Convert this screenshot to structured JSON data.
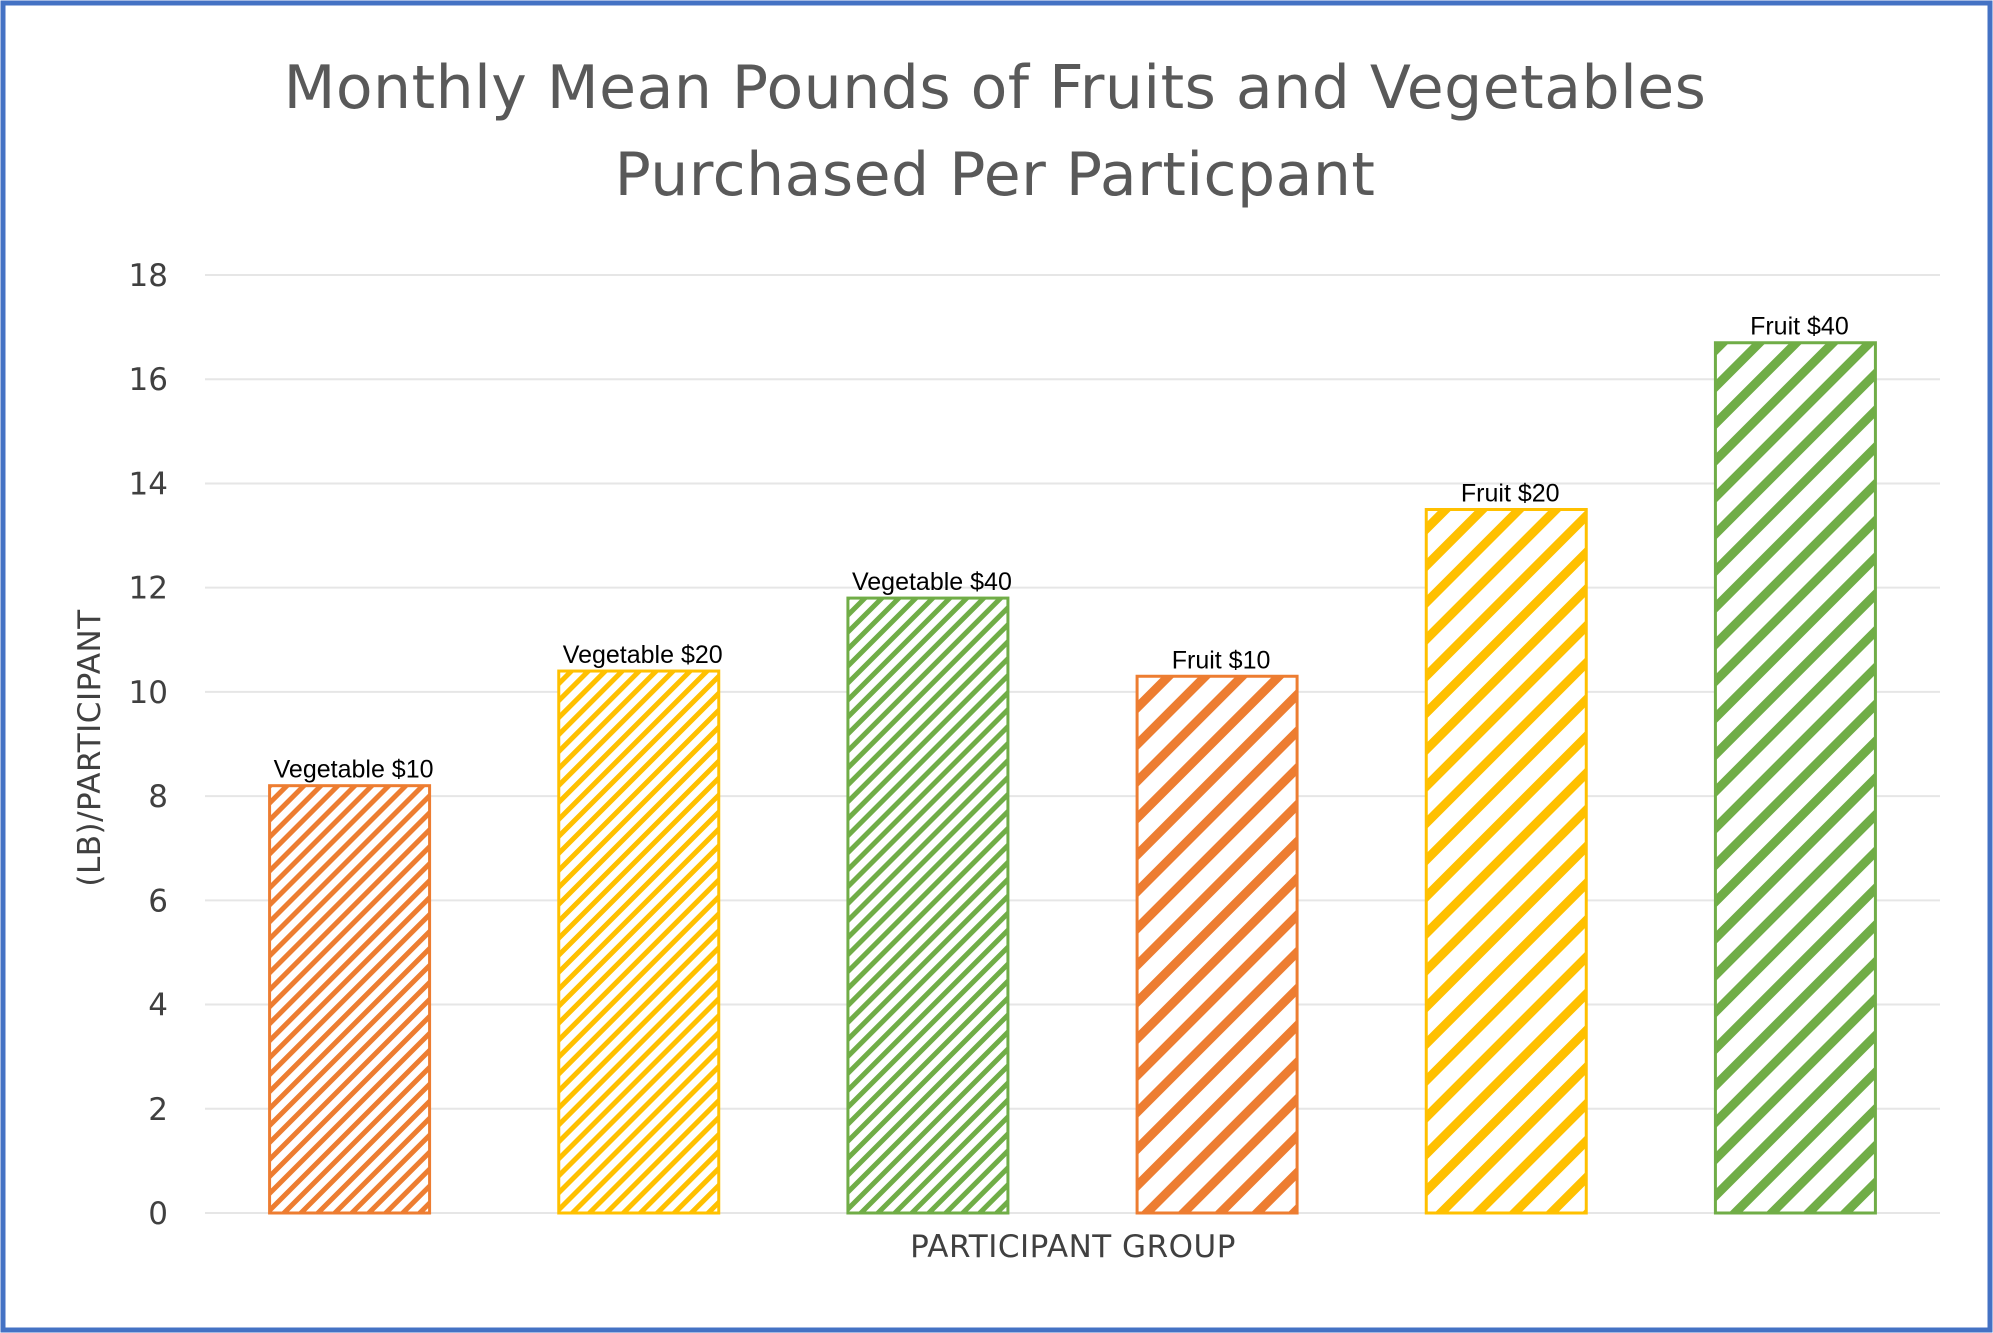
{
  "chart_data": {
    "type": "bar",
    "title_lines": [
      "Monthly Mean Pounds of Fruits and Vegetables",
      "Purchased Per Particpant"
    ],
    "xlabel": "PARTICIPANT GROUP",
    "ylabel": "(LB)/PARTICIPANT",
    "ylim": [
      0,
      18
    ],
    "yticks": [
      "0",
      "2",
      "4",
      "6",
      "8",
      "10",
      "12",
      "14",
      "16",
      "18"
    ],
    "grid": true,
    "legend": "none",
    "bars": [
      {
        "label": "Vegetable $10",
        "value": 8.2,
        "color": "#ED7D31",
        "pattern": "fine"
      },
      {
        "label": "Vegetable $20",
        "value": 10.4,
        "color": "#FFC000",
        "pattern": "fine"
      },
      {
        "label": "Vegetable $40",
        "value": 11.8,
        "color": "#70AD47",
        "pattern": "fine"
      },
      {
        "label": "Fruit $10",
        "value": 10.3,
        "color": "#ED7D31",
        "pattern": "wide"
      },
      {
        "label": "Fruit $20",
        "value": 13.5,
        "color": "#FFC000",
        "pattern": "wide"
      },
      {
        "label": "Fruit $40",
        "value": 16.7,
        "color": "#70AD47",
        "pattern": "wide"
      }
    ]
  },
  "colors": {
    "frame_border": "#4472C4",
    "gridline": "#E6E6E6",
    "text": "#595959"
  }
}
